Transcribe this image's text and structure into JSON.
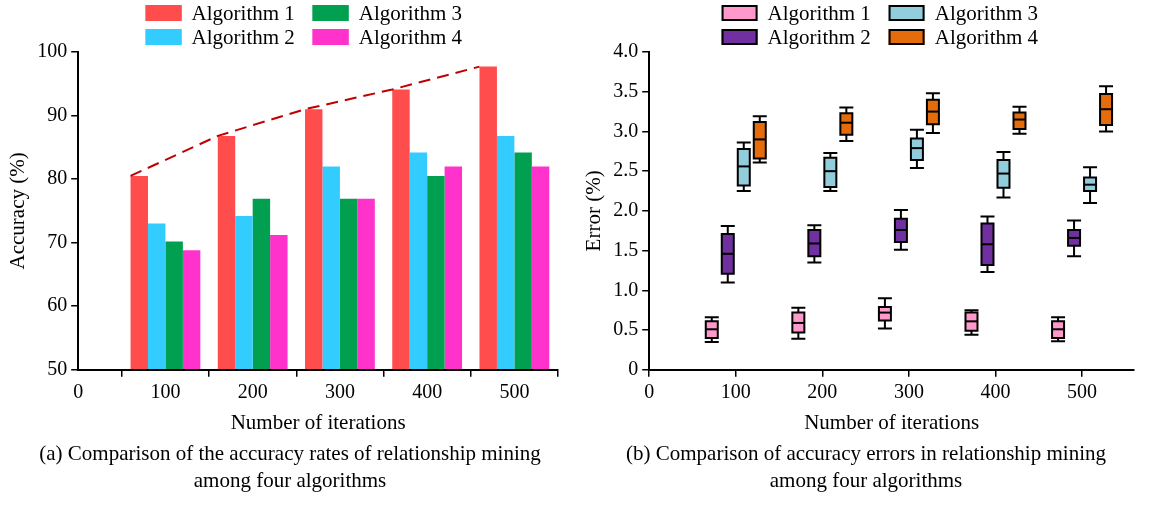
{
  "chart_data": [
    {
      "type": "bar",
      "title": "(a) Comparison of the accuracy rates of relationship mining among four algorithms",
      "xlabel": "Number of iterations",
      "ylabel": "Accuracy (%)",
      "x": [
        100,
        200,
        300,
        400,
        500
      ],
      "xlim": [
        0,
        550
      ],
      "xticks": [
        0,
        100,
        200,
        300,
        400,
        500
      ],
      "ylim": [
        50,
        100
      ],
      "yticks": [
        50,
        60,
        70,
        80,
        90,
        100
      ],
      "legend": "top",
      "grid": false,
      "series": [
        {
          "name": "Algorithm 1",
          "color": "#ff4d4d",
          "values": [
            80.5,
            86.8,
            91.0,
            94.1,
            97.7
          ]
        },
        {
          "name": "Algorithm 2",
          "color": "#33ccff",
          "values": [
            73.0,
            74.2,
            82.0,
            84.2,
            86.8
          ]
        },
        {
          "name": "Algorithm 3",
          "color": "#00a050",
          "values": [
            70.2,
            76.9,
            76.9,
            80.5,
            84.2
          ]
        },
        {
          "name": "Algorithm 4",
          "color": "#ff33cc",
          "values": [
            68.8,
            71.2,
            76.9,
            82.0,
            82.0
          ]
        },
        {
          "type": "line",
          "color": "#c00000",
          "x": [
            60,
            160,
            260,
            360,
            460
          ],
          "values": [
            80.5,
            86.8,
            91.0,
            94.1,
            97.7
          ],
          "line_style": "dashed",
          "marker": "none"
        }
      ]
    },
    {
      "type": "box",
      "title": "(b) Comparison of accuracy errors in relationship mining among four algorithms",
      "xlabel": "Number of iterations",
      "ylabel": "Error (%)",
      "x": [
        100,
        200,
        300,
        400,
        500
      ],
      "xlim": [
        0,
        560
      ],
      "xticks": [
        0,
        100,
        200,
        300,
        400,
        500
      ],
      "ylim": [
        0,
        4
      ],
      "yticks": [
        0,
        0.5,
        {
          "value": 1,
          "label": "1.0"
        },
        1.5,
        {
          "value": 2,
          "label": "2.0"
        },
        2.5,
        {
          "value": 3,
          "label": "3.0"
        },
        3.5,
        {
          "value": 4,
          "label": "4.0"
        }
      ],
      "legend": "top",
      "grid": false,
      "series": [
        {
          "name": "Algorithm 1",
          "color": "#ff99cc",
          "boxes": [
            {
              "low": 0.35,
              "q1": 0.4,
              "median": 0.51,
              "q3": 0.61,
              "high": 0.66
            },
            {
              "low": 0.39,
              "q1": 0.47,
              "median": 0.59,
              "q3": 0.72,
              "high": 0.78
            },
            {
              "low": 0.52,
              "q1": 0.62,
              "median": 0.72,
              "q3": 0.79,
              "high": 0.9
            },
            {
              "low": 0.44,
              "q1": 0.49,
              "median": 0.61,
              "q3": 0.72,
              "high": 0.75
            },
            {
              "low": 0.36,
              "q1": 0.4,
              "median": 0.51,
              "q3": 0.61,
              "high": 0.66
            }
          ]
        },
        {
          "name": "Algorithm 2",
          "color": "#7030a0",
          "boxes": [
            {
              "low": 1.1,
              "q1": 1.21,
              "median": 1.46,
              "q3": 1.71,
              "high": 1.81
            },
            {
              "low": 1.35,
              "q1": 1.43,
              "median": 1.59,
              "q3": 1.76,
              "high": 1.82
            },
            {
              "low": 1.51,
              "q1": 1.61,
              "median": 1.76,
              "q3": 1.9,
              "high": 2.01
            },
            {
              "low": 1.23,
              "q1": 1.32,
              "median": 1.58,
              "q3": 1.84,
              "high": 1.93
            },
            {
              "low": 1.43,
              "q1": 1.56,
              "median": 1.66,
              "q3": 1.76,
              "high": 1.88
            }
          ]
        },
        {
          "name": "Algorithm 3",
          "color": "#92cddc",
          "boxes": [
            {
              "low": 2.25,
              "q1": 2.32,
              "median": 2.56,
              "q3": 2.78,
              "high": 2.86
            },
            {
              "low": 2.25,
              "q1": 2.3,
              "median": 2.5,
              "q3": 2.67,
              "high": 2.73
            },
            {
              "low": 2.54,
              "q1": 2.64,
              "median": 2.79,
              "q3": 2.91,
              "high": 3.02
            },
            {
              "low": 2.17,
              "q1": 2.29,
              "median": 2.47,
              "q3": 2.64,
              "high": 2.74
            },
            {
              "low": 2.1,
              "q1": 2.25,
              "median": 2.33,
              "q3": 2.42,
              "high": 2.55
            }
          ]
        },
        {
          "name": "Algorithm 4",
          "color": "#e46c0a",
          "boxes": [
            {
              "low": 2.61,
              "q1": 2.66,
              "median": 2.9,
              "q3": 3.12,
              "high": 3.19
            },
            {
              "low": 2.88,
              "q1": 2.96,
              "median": 3.11,
              "q3": 3.23,
              "high": 3.3
            },
            {
              "low": 2.98,
              "q1": 3.09,
              "median": 3.25,
              "q3": 3.4,
              "high": 3.48
            },
            {
              "low": 2.97,
              "q1": 3.03,
              "median": 3.15,
              "q3": 3.24,
              "high": 3.31
            },
            {
              "low": 3.0,
              "q1": 3.08,
              "median": 3.28,
              "q3": 3.47,
              "high": 3.57
            }
          ]
        }
      ]
    }
  ]
}
